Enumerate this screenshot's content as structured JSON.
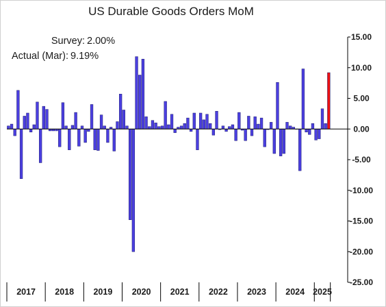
{
  "chart_data": {
    "type": "bar",
    "title": "US Durable Goods Orders MoM",
    "annotations": [
      {
        "label": "Survey:",
        "value": "2.00%"
      },
      {
        "label": "Actual (Mar):",
        "value": "9.19%"
      }
    ],
    "xlabel": "",
    "ylabel": "",
    "ylim": [
      -25,
      15
    ],
    "yticks": [
      15,
      10,
      5,
      0,
      -5,
      -10,
      -15,
      -20,
      -25
    ],
    "ytick_labels": [
      "15.00",
      "10.00",
      "5.00",
      "0.00",
      "-5.00",
      "-10.00",
      "-15.00",
      "-20.00",
      "-25.00"
    ],
    "year_labels": [
      "2017",
      "2018",
      "2019",
      "2020",
      "2021",
      "2022",
      "2023",
      "2024",
      "2025"
    ],
    "start_period": "2017-01",
    "series": [
      {
        "color": "#4b3fe0",
        "highlight_color": "#ee1111",
        "values": [
          0.5,
          0.8,
          -1.1,
          6.3,
          -8.1,
          2.1,
          2.6,
          -0.5,
          0.7,
          4.4,
          -5.5,
          3.7,
          3.2,
          -0.3,
          -0.3,
          -0.3,
          -2.9,
          4.3,
          0.5,
          -3.4,
          0.6,
          2.7,
          -2.8,
          0.5,
          -2.2,
          -0.4,
          4.0,
          -3.4,
          -3.5,
          2.3,
          0.5,
          -2.2,
          0.3,
          -3.6,
          1.2,
          5.7,
          3.1,
          0.5,
          -14.8,
          -20.0,
          11.8,
          8.8,
          11.4,
          2.0,
          0.4,
          1.4,
          1.0,
          0.4,
          0.5,
          4.5,
          0.7,
          2.4,
          -0.6,
          0.3,
          0.5,
          0.9,
          1.8,
          -0.4,
          2.6,
          -3.4,
          2.6,
          1.5,
          2.4,
          0.9,
          -1.0,
          2.9,
          -0.1,
          0.5,
          -0.4,
          0.4,
          0.7,
          -1.9,
          2.7,
          -0.2,
          -1.9,
          2.1,
          -1.1,
          2.0,
          0.8,
          1.8,
          -2.9,
          -0.1,
          1.1,
          -4.0,
          7.6,
          -4.4,
          -4.0,
          1.1,
          0.5,
          0.3,
          0.0,
          -6.8,
          9.8,
          -0.5,
          -0.9,
          0.9,
          -1.8,
          -1.6,
          3.3,
          0.9,
          9.19
        ]
      }
    ]
  }
}
